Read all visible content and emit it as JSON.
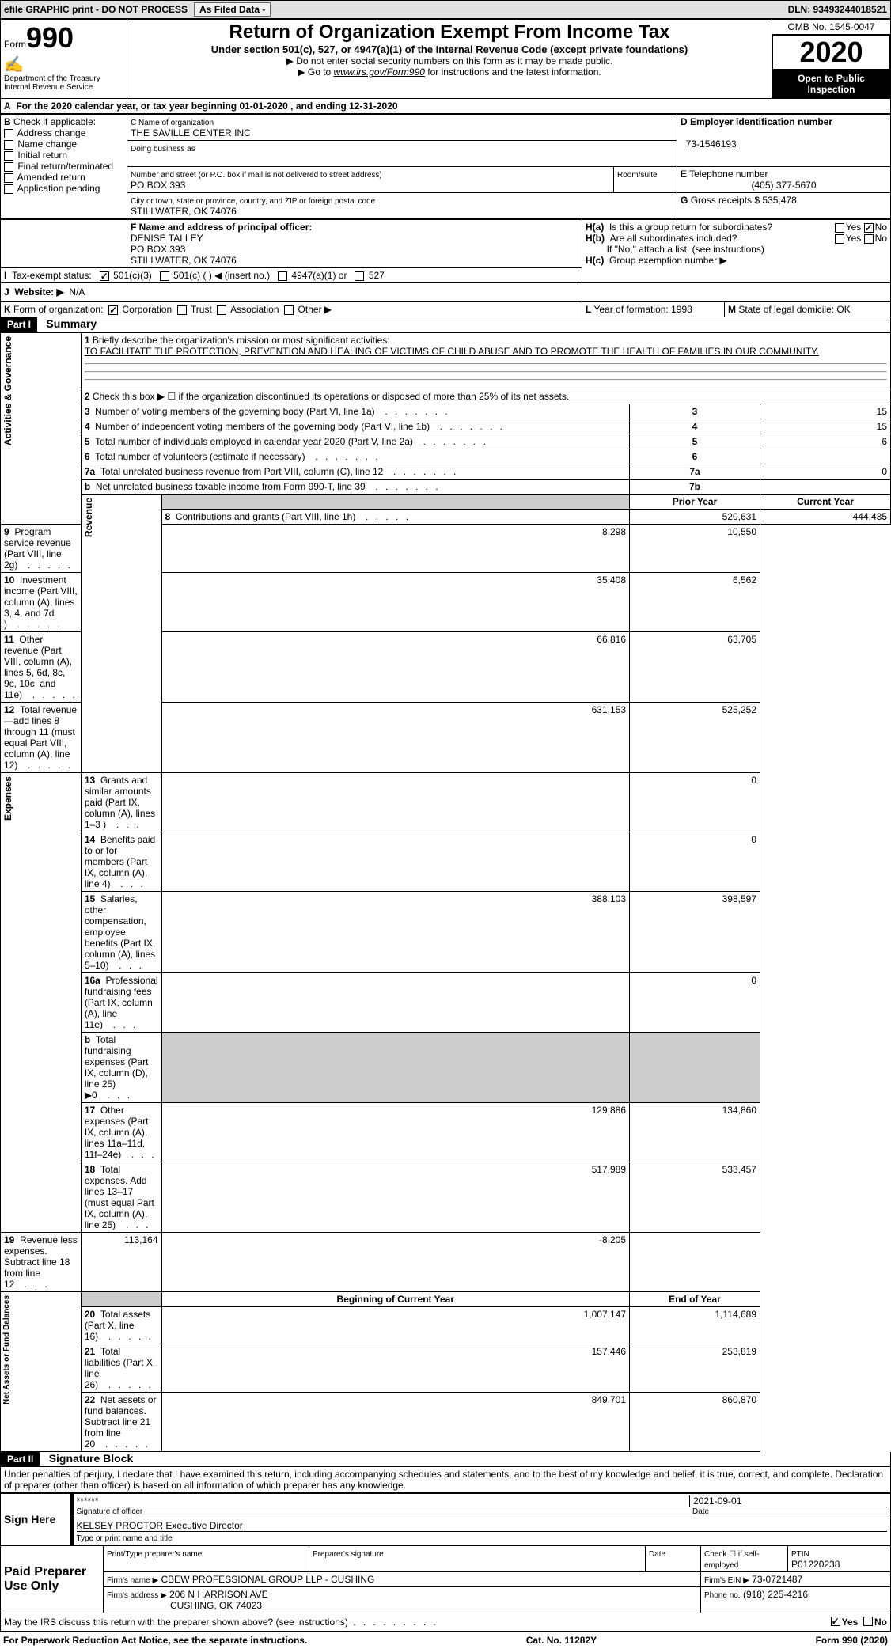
{
  "topbar": {
    "efile": "efile GRAPHIC print - DO NOT PROCESS",
    "asFiled": "As Filed Data -",
    "dln": "DLN: 93493244018521"
  },
  "header": {
    "form": "Form",
    "form_no": "990",
    "dept": "Department of the Treasury\nInternal Revenue Service",
    "title": "Return of Organization Exempt From Income Tax",
    "subtitle": "Under section 501(c), 527, or 4947(a)(1) of the Internal Revenue Code (except private foundations)",
    "note1": "▶ Do not enter social security numbers on this form as it may be made public.",
    "note2_prefix": "▶ Go to ",
    "note2_link": "www.irs.gov/Form990",
    "note2_suffix": " for instructions and the latest information.",
    "omb": "OMB No. 1545-0047",
    "year": "2020",
    "open": "Open to Public Inspection"
  },
  "A": {
    "label": "A",
    "text": "For the 2020 calendar year, or tax year beginning 01-01-2020   , and ending 12-31-2020"
  },
  "B": {
    "label": "B",
    "check_label": "Check if applicable:",
    "items": [
      "Address change",
      "Name change",
      "Initial return",
      "Final return/terminated",
      "Amended return",
      "Application pending"
    ]
  },
  "C": {
    "label_name": "C Name of organization",
    "org_name": "THE SAVILLE CENTER INC",
    "dba_label": "Doing business as",
    "addr_label": "Number and street (or P.O. box if mail is not delivered to street address)",
    "addr": "PO BOX 393",
    "room_label": "Room/suite",
    "city_label": "City or town, state or province, country, and ZIP or foreign postal code",
    "city": "STILLWATER, OK  74076"
  },
  "D": {
    "label": "D Employer identification number",
    "ein": "73-1546193"
  },
  "E": {
    "label": "E Telephone number",
    "phone": "(405) 377-5670"
  },
  "G": {
    "label": "G",
    "text": "Gross receipts $",
    "val": "535,478"
  },
  "F": {
    "label": "F  Name and address of principal officer:",
    "name": "DENISE TALLEY",
    "addr1": "PO BOX 393",
    "addr2": "STILLWATER, OK  74076"
  },
  "H": {
    "a_label": "H(a)",
    "a_text": "Is this a group return for subordinates?",
    "b_label": "H(b)",
    "b_text": "Are all subordinates included?",
    "b_note": "If \"No,\" attach a list. (see instructions)",
    "c_label": "H(c)",
    "c_text": "Group exemption number ▶",
    "yes": "Yes",
    "no": "No"
  },
  "I": {
    "label": "I",
    "text": "Tax-exempt status:",
    "opt1": "501(c)(3)",
    "opt2": "501(c) (   ) ◀ (insert no.)",
    "opt3": "4947(a)(1) or",
    "opt4": "527"
  },
  "J": {
    "label": "J",
    "text": "Website: ▶",
    "val": "N/A"
  },
  "K": {
    "label": "K",
    "text": "Form of organization:",
    "opts": [
      "Corporation",
      "Trust",
      "Association",
      "Other ▶"
    ]
  },
  "L": {
    "label": "L",
    "text": "Year of formation:",
    "val": "1998"
  },
  "M": {
    "label": "M",
    "text": "State of legal domicile:",
    "val": "OK"
  },
  "part1": {
    "label": "Part I",
    "title": "Summary"
  },
  "sections": {
    "activities": "Activities & Governance",
    "revenue": "Revenue",
    "expenses": "Expenses",
    "netassets": "Net Assets or Fund Balances"
  },
  "line1": {
    "num": "1",
    "text": "Briefly describe the organization's mission or most significant activities:",
    "val": "TO FACILITATE THE PROTECTION, PREVENTION AND HEALING OF VICTIMS OF CHILD ABUSE AND TO PROMOTE THE HEALTH OF FAMILIES IN OUR COMMUNITY."
  },
  "line2": {
    "num": "2",
    "text": "Check this box ▶ ☐ if the organization discontinued its operations or disposed of more than 25% of its net assets."
  },
  "cols": {
    "prior": "Prior Year",
    "current": "Current Year",
    "begin": "Beginning of Current Year",
    "end": "End of Year"
  },
  "lines": [
    {
      "n": "3",
      "d": "Number of voting members of the governing body (Part VI, line 1a)",
      "box": "3",
      "v2": "15"
    },
    {
      "n": "4",
      "d": "Number of independent voting members of the governing body (Part VI, line 1b)",
      "box": "4",
      "v2": "15"
    },
    {
      "n": "5",
      "d": "Total number of individuals employed in calendar year 2020 (Part V, line 2a)",
      "box": "5",
      "v2": "6"
    },
    {
      "n": "6",
      "d": "Total number of volunteers (estimate if necessary)",
      "box": "6",
      "v2": ""
    },
    {
      "n": "7a",
      "d": "Total unrelated business revenue from Part VIII, column (C), line 12",
      "box": "7a",
      "v2": "0"
    },
    {
      "n": "b",
      "d": "Net unrelated business taxable income from Form 990-T, line 39",
      "box": "7b",
      "v2": ""
    }
  ],
  "rev_lines": [
    {
      "n": "8",
      "d": "Contributions and grants (Part VIII, line 1h)",
      "v1": "520,631",
      "v2": "444,435"
    },
    {
      "n": "9",
      "d": "Program service revenue (Part VIII, line 2g)",
      "v1": "8,298",
      "v2": "10,550"
    },
    {
      "n": "10",
      "d": "Investment income (Part VIII, column (A), lines 3, 4, and 7d )",
      "v1": "35,408",
      "v2": "6,562"
    },
    {
      "n": "11",
      "d": "Other revenue (Part VIII, column (A), lines 5, 6d, 8c, 9c, 10c, and 11e)",
      "v1": "66,816",
      "v2": "63,705"
    },
    {
      "n": "12",
      "d": "Total revenue—add lines 8 through 11 (must equal Part VIII, column (A), line 12)",
      "v1": "631,153",
      "v2": "525,252"
    }
  ],
  "exp_lines": [
    {
      "n": "13",
      "d": "Grants and similar amounts paid (Part IX, column (A), lines 1–3 )",
      "v1": "",
      "v2": "0"
    },
    {
      "n": "14",
      "d": "Benefits paid to or for members (Part IX, column (A), line 4)",
      "v1": "",
      "v2": "0"
    },
    {
      "n": "15",
      "d": "Salaries, other compensation, employee benefits (Part IX, column (A), lines 5–10)",
      "v1": "388,103",
      "v2": "398,597"
    },
    {
      "n": "16a",
      "d": "Professional fundraising fees (Part IX, column (A), line 11e)",
      "v1": "",
      "v2": "0"
    },
    {
      "n": "b",
      "d": "Total fundraising expenses (Part IX, column (D), line 25) ▶0",
      "v1": "gray",
      "v2": "gray"
    },
    {
      "n": "17",
      "d": "Other expenses (Part IX, column (A), lines 11a–11d, 11f–24e)",
      "v1": "129,886",
      "v2": "134,860"
    },
    {
      "n": "18",
      "d": "Total expenses. Add lines 13–17 (must equal Part IX, column (A), line 25)",
      "v1": "517,989",
      "v2": "533,457"
    },
    {
      "n": "19",
      "d": "Revenue less expenses. Subtract line 18 from line 12",
      "v1": "113,164",
      "v2": "-8,205"
    }
  ],
  "na_lines": [
    {
      "n": "20",
      "d": "Total assets (Part X, line 16)",
      "v1": "1,007,147",
      "v2": "1,114,689"
    },
    {
      "n": "21",
      "d": "Total liabilities (Part X, line 26)",
      "v1": "157,446",
      "v2": "253,819"
    },
    {
      "n": "22",
      "d": "Net assets or fund balances. Subtract line 21 from line 20",
      "v1": "849,701",
      "v2": "860,870"
    }
  ],
  "part2": {
    "label": "Part II",
    "title": "Signature Block",
    "perjury": "Under penalties of perjury, I declare that I have examined this return, including accompanying schedules and statements, and to the best of my knowledge and belief, it is true, correct, and complete. Declaration of preparer (other than officer) is based on all information of which preparer has any knowledge."
  },
  "sign": {
    "label": "Sign Here",
    "sig_stars": "******",
    "sig_label": "Signature of officer",
    "date": "2021-09-01",
    "date_label": "Date",
    "name": "KELSEY PROCTOR Executive Director",
    "name_label": "Type or print name and title"
  },
  "paid": {
    "label": "Paid Preparer Use Only",
    "print_label": "Print/Type preparer's name",
    "sig_label": "Preparer's signature",
    "date_label": "Date",
    "check_label": "Check ☐ if self-employed",
    "ptin_label": "PTIN",
    "ptin": "P01220238",
    "firm_name_label": "Firm's name    ▶",
    "firm_name": "CBEW PROFESSIONAL GROUP LLP - CUSHING",
    "firm_ein_label": "Firm's EIN ▶",
    "firm_ein": "73-0721487",
    "firm_addr_label": "Firm's address ▶",
    "firm_addr1": "206 N HARRISON AVE",
    "firm_addr2": "CUSHING, OK  74023",
    "phone_label": "Phone no.",
    "phone": "(918) 225-4216"
  },
  "discuss": {
    "text": "May the IRS discuss this return with the preparer shown above? (see instructions)",
    "yes": "Yes",
    "no": "No"
  },
  "footer": {
    "left": "For Paperwork Reduction Act Notice, see the separate instructions.",
    "mid": "Cat. No. 11282Y",
    "right": "Form 990 (2020)"
  }
}
